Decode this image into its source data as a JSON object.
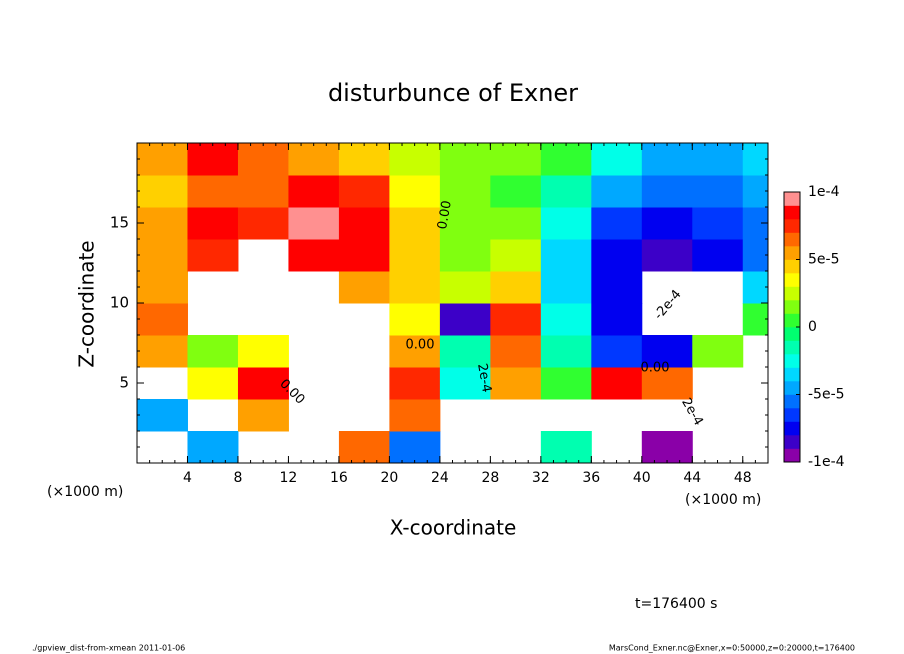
{
  "chart_data": {
    "type": "heatmap",
    "title": "disturbunce of Exner",
    "x_label": "X-coordinate",
    "y_label": "Z-coordinate",
    "x_unit": "(×1000 m)",
    "y_unit": "(×1000 m)",
    "time_label": "t=176400 s",
    "footer_left": "./gpview_dist-from-xmean  2011-01-06",
    "footer_right": "MarsCond_Exner.nc@Exner,x=0:50000,z=0:20000,t=176400",
    "xlim": [
      0,
      50
    ],
    "ylim": [
      0,
      20
    ],
    "xticks": [
      4,
      8,
      12,
      16,
      20,
      24,
      28,
      32,
      36,
      40,
      44,
      48
    ],
    "yticks": [
      5,
      10,
      15
    ],
    "x": [
      2,
      6,
      10,
      14,
      18,
      22,
      26,
      30,
      34,
      38,
      42,
      46,
      50
    ],
    "z": [
      1,
      3,
      5,
      7,
      9,
      11,
      13,
      15,
      17,
      19
    ],
    "values": [
      [
        null,
        -5e-05,
        null,
        null,
        6e-05,
        -6e-05,
        null,
        null,
        -2e-05,
        null,
        -0.0001,
        null,
        null
      ],
      [
        -5e-05,
        null,
        5e-05,
        null,
        null,
        6e-05,
        null,
        null,
        null,
        null,
        null,
        null,
        null
      ],
      [
        null,
        3e-05,
        8e-05,
        null,
        null,
        7e-05,
        -3e-05,
        5e-05,
        0,
        8e-05,
        6e-05,
        null,
        null
      ],
      [
        5e-05,
        1e-05,
        3e-05,
        null,
        null,
        5e-05,
        -2e-05,
        6e-05,
        -2e-05,
        -7e-05,
        -8e-05,
        1e-05,
        null
      ],
      [
        6e-05,
        null,
        null,
        null,
        null,
        3e-05,
        -9e-05,
        7e-05,
        -3e-05,
        -8e-05,
        null,
        null,
        0
      ],
      [
        5e-05,
        null,
        null,
        null,
        5e-05,
        4e-05,
        2e-05,
        4e-05,
        -4e-05,
        -8e-05,
        null,
        null,
        -4e-05
      ],
      [
        5e-05,
        7e-05,
        null,
        8e-05,
        8e-05,
        4e-05,
        1e-05,
        2e-05,
        -4e-05,
        -8e-05,
        -9e-05,
        -8e-05,
        -6e-05
      ],
      [
        5e-05,
        8e-05,
        7e-05,
        9e-05,
        8e-05,
        4e-05,
        1e-05,
        1e-05,
        -3e-05,
        -7e-05,
        -8e-05,
        -7e-05,
        -6e-05
      ],
      [
        4e-05,
        6e-05,
        6e-05,
        8e-05,
        7e-05,
        3e-05,
        1e-05,
        0,
        -2e-05,
        -5e-05,
        -6e-05,
        -6e-05,
        -5e-05
      ],
      [
        5e-05,
        8e-05,
        6e-05,
        5e-05,
        4e-05,
        2e-05,
        1e-05,
        1e-05,
        0,
        -3e-05,
        -5e-05,
        -5e-05,
        -4e-05
      ]
    ],
    "clim": [
      -0.0001,
      0.0001
    ],
    "levels": [
      -0.0001,
      -9e-05,
      -8e-05,
      -7e-05,
      -6e-05,
      -5e-05,
      -4e-05,
      -3e-05,
      -2e-05,
      -1e-05,
      0,
      1e-05,
      2e-05,
      3e-05,
      4e-05,
      5e-05,
      6e-05,
      7e-05,
      8e-05,
      9e-05,
      0.0001
    ],
    "colors": [
      "#8a00a8",
      "#3c00c8",
      "#0000f0",
      "#0038ff",
      "#0070ff",
      "#00a8ff",
      "#00d8ff",
      "#00ffe8",
      "#00ffb0",
      "#00ff70",
      "#30ff30",
      "#80ff10",
      "#c8ff00",
      "#ffff00",
      "#ffd000",
      "#ffa000",
      "#ff6800",
      "#ff2800",
      "#ff0000",
      "#ff9090"
    ],
    "cticks": [
      {
        "value": 0.0001,
        "label": "1e-4"
      },
      {
        "value": 5e-05,
        "label": "5e-5"
      },
      0,
      {
        "value": -5e-05,
        "label": "-5e-5"
      },
      {
        "value": -0.0001,
        "label": "-1e-4"
      }
    ],
    "annotations": [
      "0.00",
      "0.00",
      "0.00",
      "2e-4",
      "0.00",
      "-2e-4",
      "2e-4"
    ]
  }
}
